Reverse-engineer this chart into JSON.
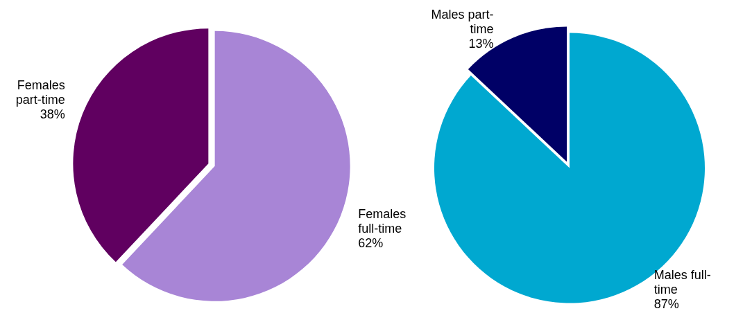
{
  "chart_data": [
    {
      "type": "pie",
      "categories": [
        "Females full-time",
        "Females part-time"
      ],
      "values": [
        62,
        38
      ],
      "value_labels": [
        "62%",
        "38%"
      ],
      "colors": [
        "#a885d6",
        "#600060"
      ]
    },
    {
      "type": "pie",
      "categories": [
        "Males full-time",
        "Males part-time"
      ],
      "values": [
        87,
        13
      ],
      "value_labels": [
        "87%",
        "13%"
      ],
      "colors": [
        "#00a8d0",
        "#000066"
      ]
    }
  ]
}
